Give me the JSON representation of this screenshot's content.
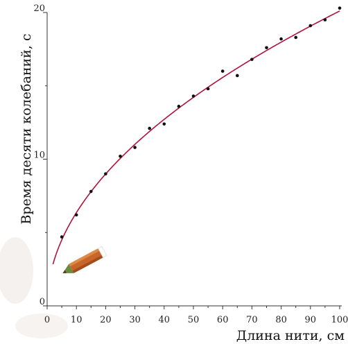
{
  "chart_data": {
    "type": "scatter",
    "title": "",
    "xlabel": "Длина нити, см",
    "ylabel": "Время десяти колебаний, с",
    "xlim": [
      0,
      100
    ],
    "ylim": [
      0,
      20
    ],
    "x_ticks": [
      "0",
      "10",
      "20",
      "30",
      "40",
      "50",
      "60",
      "70",
      "80",
      "90",
      "100"
    ],
    "y_ticks": [
      "0",
      "10",
      "20"
    ],
    "grid": false,
    "series": [
      {
        "x": [
          5,
          10,
          15,
          20,
          25,
          30,
          35,
          40,
          45,
          50,
          55,
          60,
          65,
          70,
          75,
          80,
          85,
          90,
          95,
          100
        ],
        "values": [
          4.7,
          6.2,
          7.8,
          9.0,
          10.2,
          10.8,
          12.1,
          12.4,
          13.6,
          14.3,
          14.8,
          16.0,
          15.7,
          16.8,
          17.6,
          18.2,
          18.3,
          19.1,
          19.5,
          20.3
        ]
      }
    ],
    "fit_curve": {
      "formula": "y = 2.01 * sqrt(x)",
      "x_start": 2,
      "x_end": 100
    },
    "colors": {
      "points": "#111111",
      "curve": "#b0103a",
      "axis": "#333333"
    }
  },
  "decoration": {
    "icon": "pencil-icon"
  }
}
